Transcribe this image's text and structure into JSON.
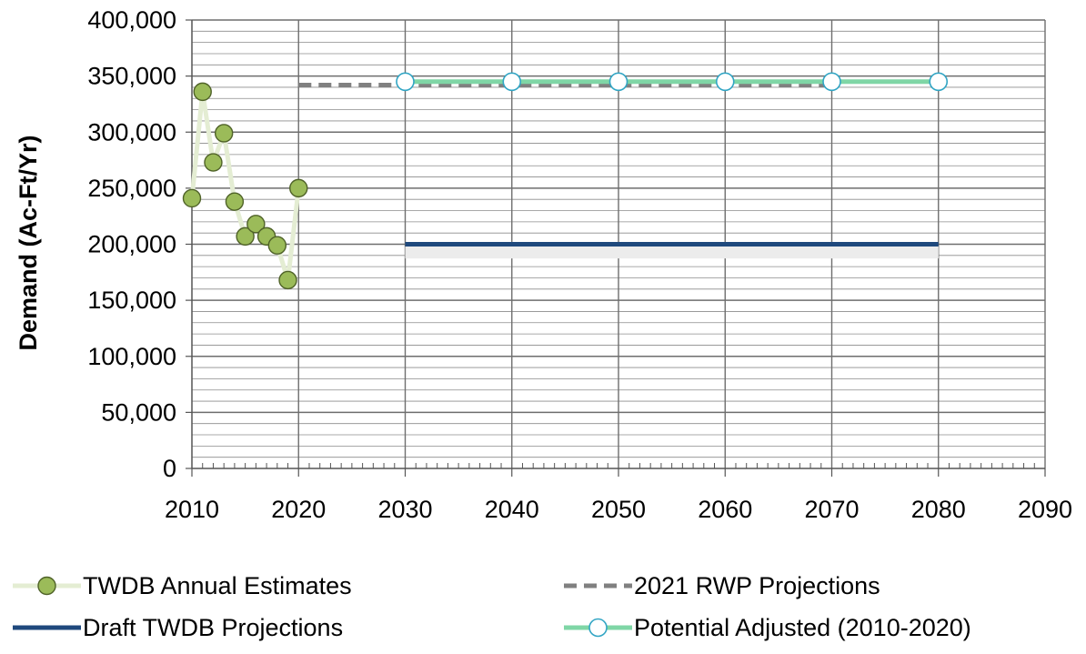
{
  "chart_data": {
    "type": "line",
    "title": "",
    "xlabel": "",
    "ylabel": "Demand (Ac-Ft/Yr)",
    "xlim": [
      2010,
      2090
    ],
    "ylim": [
      0,
      400000
    ],
    "x_ticks": [
      2010,
      2020,
      2030,
      2040,
      2050,
      2060,
      2070,
      2080,
      2090
    ],
    "x_tick_labels": [
      "2010",
      "2020",
      "2030",
      "2040",
      "2050",
      "2060",
      "2070",
      "2080",
      "2090"
    ],
    "y_ticks": [
      0,
      50000,
      100000,
      150000,
      200000,
      250000,
      300000,
      350000,
      400000
    ],
    "y_tick_labels": [
      "0",
      "50,000",
      "100,000",
      "150,000",
      "200,000",
      "250,000",
      "300,000",
      "350,000",
      "400,000"
    ],
    "grid": true,
    "legend_position": "bottom",
    "series": [
      {
        "name": "TWDB Annual Estimates",
        "style": "markers-with-faint-line",
        "color": "#9BBB59",
        "line_color": "#E4EDD3",
        "marker_edge": "#4F6228",
        "points": [
          [
            2010,
            241000
          ],
          [
            2011,
            336000
          ],
          [
            2012,
            273000
          ],
          [
            2013,
            299000
          ],
          [
            2014,
            238000
          ],
          [
            2015,
            207000
          ],
          [
            2016,
            218000
          ],
          [
            2017,
            207000
          ],
          [
            2018,
            199000
          ],
          [
            2019,
            168000
          ],
          [
            2020,
            250000
          ]
        ]
      },
      {
        "name": "2021 RWP Projections",
        "style": "dashed",
        "color": "#808080",
        "points": [
          [
            2020,
            342000
          ],
          [
            2070,
            342000
          ]
        ]
      },
      {
        "name": "Draft TWDB Projections",
        "style": "solid",
        "color": "#1F497D",
        "points": [
          [
            2030,
            200000
          ],
          [
            2080,
            200000
          ]
        ]
      },
      {
        "name": "Potential Adjusted (2010-2020)",
        "style": "solid-open-markers",
        "color": "#7FD6A6",
        "marker_edge": "#31A5C4",
        "points": [
          [
            2030,
            345000
          ],
          [
            2040,
            345000
          ],
          [
            2050,
            345000
          ],
          [
            2060,
            345000
          ],
          [
            2070,
            345000
          ],
          [
            2080,
            345000
          ]
        ]
      }
    ]
  }
}
